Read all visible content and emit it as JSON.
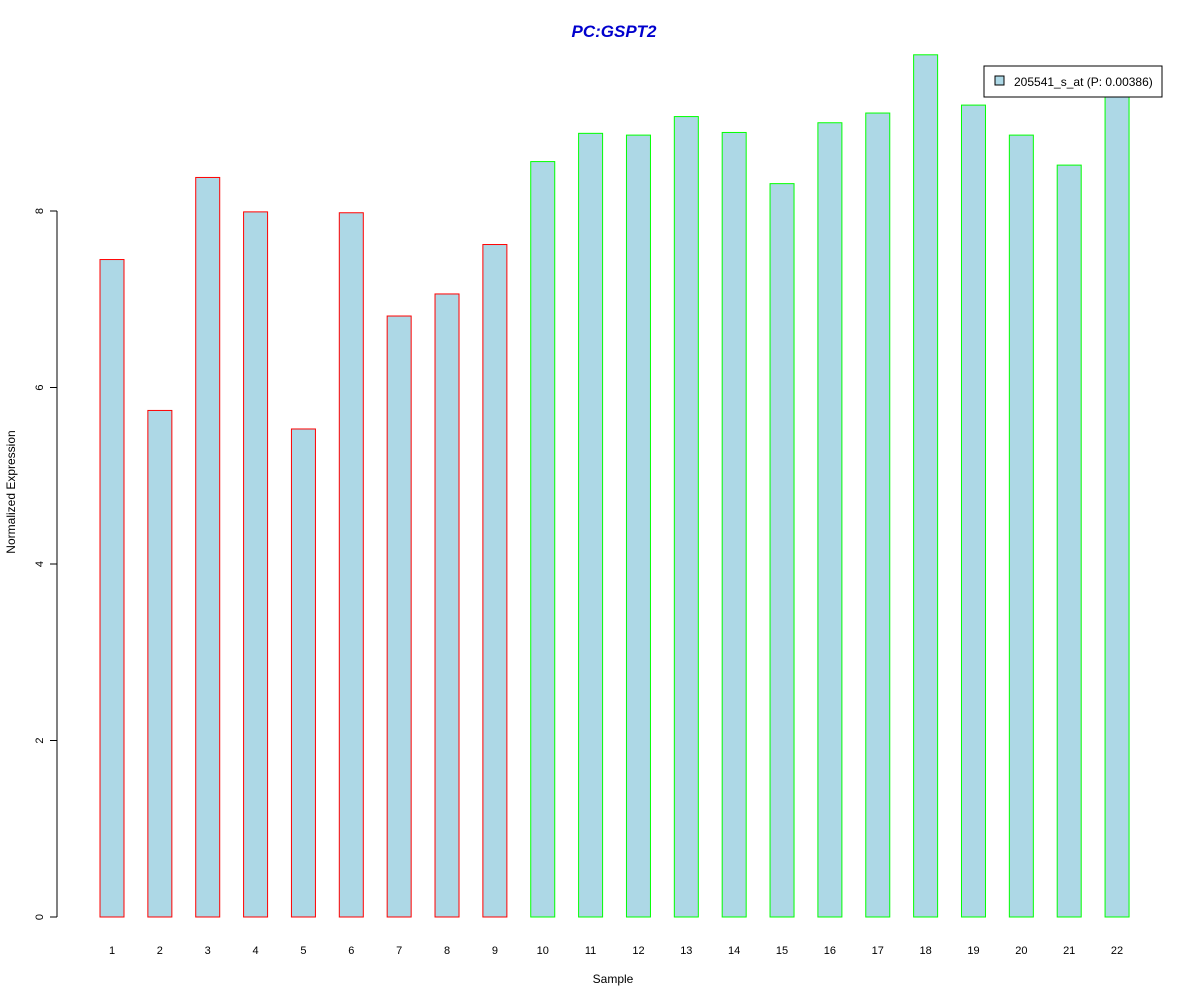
{
  "colors": {
    "bar_fill": "#add8e6",
    "group1_border": "#ff0000",
    "group2_border": "#00ff00",
    "title": "#0000cd",
    "axis": "#000000"
  },
  "chart_data": {
    "type": "bar",
    "title": "PC:GSPT2",
    "xlabel": "Sample",
    "ylabel": "Normalized Expression",
    "ylim": [
      0,
      9.9
    ],
    "y_ticks": [
      "0",
      "2",
      "4",
      "6",
      "8"
    ],
    "grid": false,
    "legend": {
      "placement": "top-right",
      "entries": [
        "205541_s_at (P: 0.00386)"
      ]
    },
    "categories": [
      "1",
      "2",
      "3",
      "4",
      "5",
      "6",
      "7",
      "8",
      "9",
      "10",
      "11",
      "12",
      "13",
      "14",
      "15",
      "16",
      "17",
      "18",
      "19",
      "20",
      "21",
      "22"
    ],
    "series": [
      {
        "name": "205541_s_at (P: 0.00386)",
        "values": [
          7.45,
          5.74,
          8.38,
          7.99,
          5.53,
          7.98,
          6.81,
          7.06,
          7.62,
          8.56,
          8.88,
          8.86,
          9.07,
          8.89,
          8.31,
          9.0,
          9.11,
          9.77,
          9.2,
          8.86,
          8.52,
          9.45
        ],
        "groups": [
          1,
          1,
          1,
          1,
          1,
          1,
          1,
          1,
          1,
          2,
          2,
          2,
          2,
          2,
          2,
          2,
          2,
          2,
          2,
          2,
          2,
          2
        ]
      }
    ]
  }
}
